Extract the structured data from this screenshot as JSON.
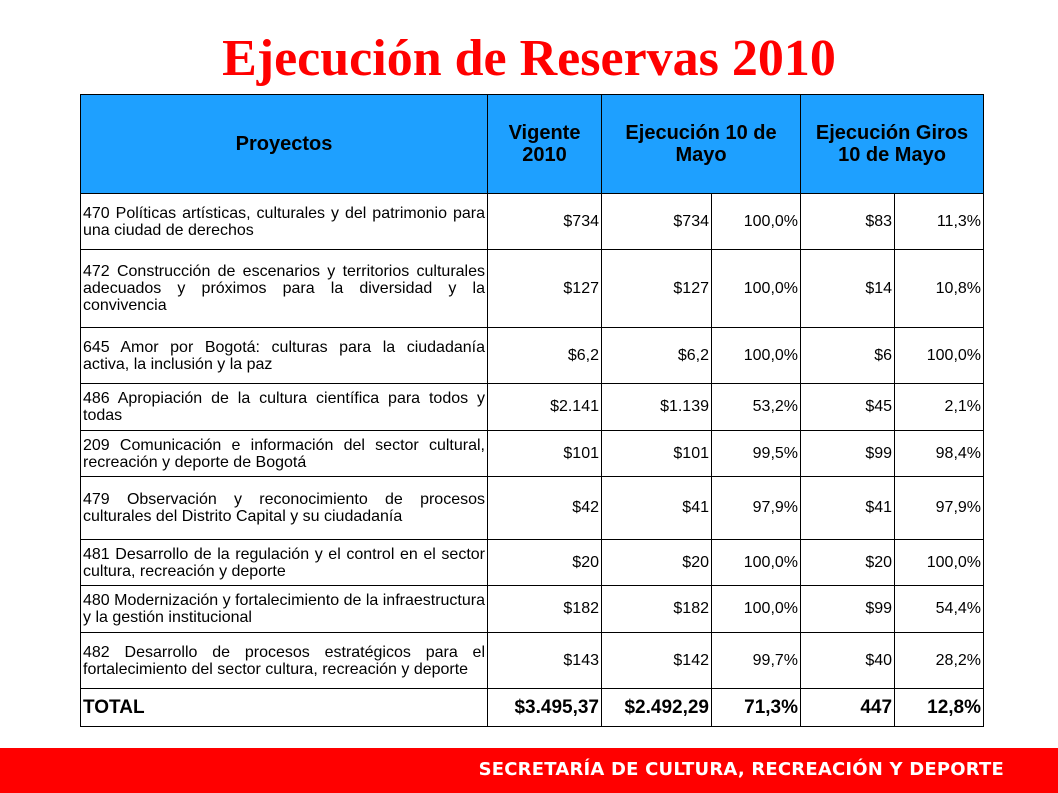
{
  "title": "Ejecución de Reservas 2010",
  "table": {
    "headers": {
      "proyectos": "Proyectos",
      "vigente": "Vigente 2010",
      "ejecucion": "Ejecución 10 de Mayo",
      "giros": "Ejecución Giros 10 de Mayo"
    },
    "rows": [
      {
        "proyecto": "470 Políticas artísticas, culturales y del patrimonio para una ciudad de derechos",
        "vigente": "$734",
        "ejec": "$734",
        "ejec_pct": "100,0%",
        "giros": "$83",
        "giros_pct": "11,3%"
      },
      {
        "proyecto": "472 Construcción de escenarios y territorios culturales adecuados y próximos para la diversidad y la convivencia",
        "vigente": "$127",
        "ejec": "$127",
        "ejec_pct": "100,0%",
        "giros": "$14",
        "giros_pct": "10,8%"
      },
      {
        "proyecto": "645 Amor por Bogotá: culturas para la ciudadanía activa, la inclusión y la paz",
        "vigente": "$6,2",
        "ejec": "$6,2",
        "ejec_pct": "100,0%",
        "giros": "$6",
        "giros_pct": "100,0%"
      },
      {
        "proyecto": "486 Apropiación de la cultura científica para todos y todas",
        "vigente": "$2.141",
        "ejec": "$1.139",
        "ejec_pct": "53,2%",
        "giros": "$45",
        "giros_pct": "2,1%"
      },
      {
        "proyecto": "209 Comunicación e información del sector cultural, recreación y deporte de Bogotá",
        "vigente": "$101",
        "ejec": "$101",
        "ejec_pct": "99,5%",
        "giros": "$99",
        "giros_pct": "98,4%"
      },
      {
        "proyecto": "479 Observación y reconocimiento de procesos culturales del Distrito Capital y su ciudadanía",
        "vigente": "$42",
        "ejec": "$41",
        "ejec_pct": "97,9%",
        "giros": "$41",
        "giros_pct": "97,9%"
      },
      {
        "proyecto": "481 Desarrollo de la regulación y el control en el sector cultura, recreación y deporte",
        "vigente": "$20",
        "ejec": "$20",
        "ejec_pct": "100,0%",
        "giros": "$20",
        "giros_pct": "100,0%"
      },
      {
        "proyecto": "480 Modernización y fortalecimiento de la infraestructura y la gestión institucional",
        "vigente": "$182",
        "ejec": "$182",
        "ejec_pct": "100,0%",
        "giros": "$99",
        "giros_pct": "54,4%"
      },
      {
        "proyecto": "482 Desarrollo de procesos estratégicos para el fortalecimiento del sector cultura, recreación y deporte",
        "vigente": "$143",
        "ejec": "$142",
        "ejec_pct": "99,7%",
        "giros": "$40",
        "giros_pct": "28,2%"
      }
    ],
    "total": {
      "label": "TOTAL",
      "vigente": "$3.495,37",
      "ejec": "$2.492,29",
      "ejec_pct": "71,3%",
      "giros": "447",
      "giros_pct": "12,8%"
    }
  },
  "footer": {
    "text": "SECRETARÍA DE CULTURA, RECREACIÓN Y DEPORTE"
  },
  "colors": {
    "title": "#ff0000",
    "header_bg": "#1ea0ff",
    "footer_bg": "#ff0000"
  }
}
